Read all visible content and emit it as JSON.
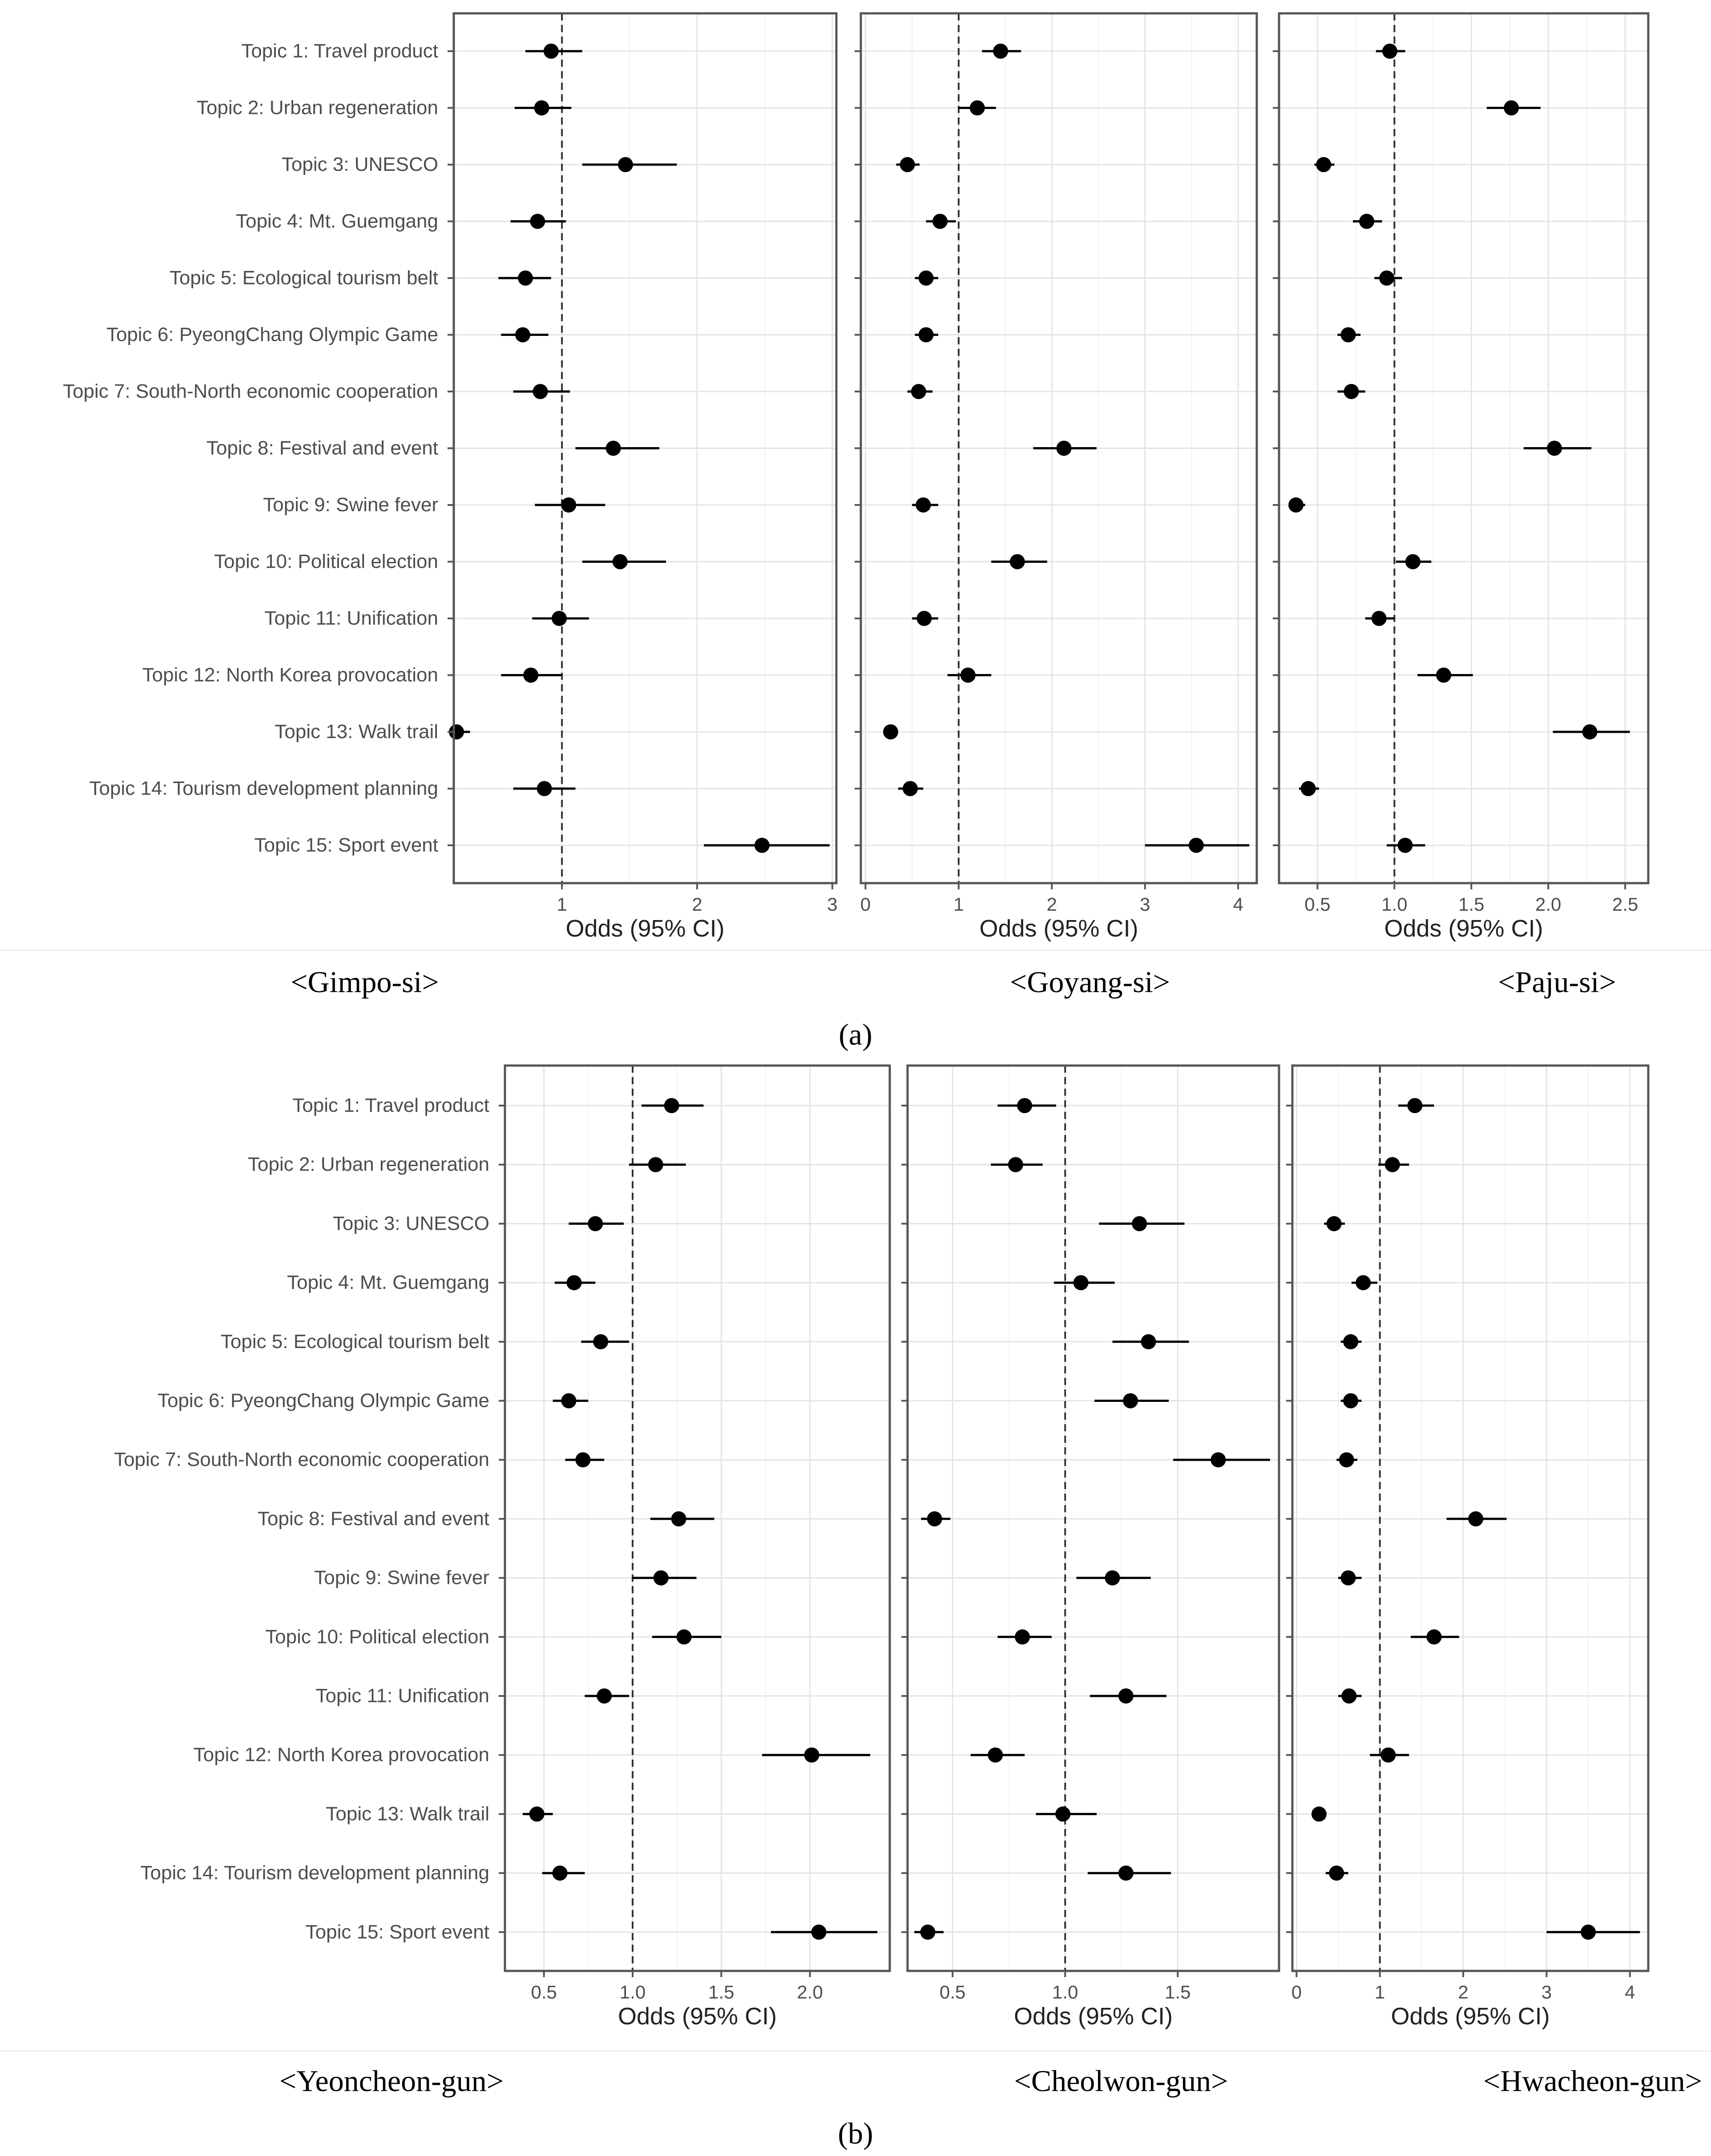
{
  "topics": [
    "Topic 1: Travel product",
    "Topic 2: Urban regeneration",
    "Topic 3: UNESCO",
    "Topic 4: Mt. Guemgang",
    "Topic 5: Ecological tourism belt",
    "Topic 6: PyeongChang Olympic Game",
    "Topic 7: South-North economic cooperation",
    "Topic 8: Festival and event",
    "Topic 9: Swine fever",
    "Topic 10: Political election",
    "Topic 11: Unification",
    "Topic 12: North Korea provocation",
    "Topic 13: Walk trail",
    "Topic 14: Tourism development planning",
    "Topic 15: Sport event"
  ],
  "panel_a_label": "(a)",
  "panel_b_label": "(b)",
  "chart_data": [
    {
      "type": "scatter",
      "subtype": "forest-plot",
      "panel": "a",
      "caption": "<Gimpo-si>",
      "xlabel": "Odds (95% CI)",
      "xlim": [
        0.2,
        3.03
      ],
      "xticks": [
        1,
        2,
        3
      ],
      "reference_line": 1,
      "odds": [
        0.92,
        0.85,
        1.47,
        0.82,
        0.73,
        0.71,
        0.84,
        1.38,
        1.05,
        1.43,
        0.98,
        0.77,
        0.22,
        0.87,
        2.48
      ],
      "lower": [
        0.73,
        0.65,
        1.15,
        0.62,
        0.53,
        0.55,
        0.64,
        1.1,
        0.8,
        1.15,
        0.78,
        0.55,
        0.17,
        0.64,
        2.05
      ],
      "upper": [
        1.15,
        1.07,
        1.85,
        1.03,
        0.92,
        0.9,
        1.06,
        1.72,
        1.32,
        1.77,
        1.2,
        1.0,
        0.32,
        1.1,
        2.98
      ]
    },
    {
      "type": "scatter",
      "subtype": "forest-plot",
      "panel": "a",
      "caption": "<Goyang-si>",
      "xlabel": "Odds (95% CI)",
      "xlim": [
        -0.05,
        4.2
      ],
      "xticks": [
        0,
        1,
        2,
        3,
        4
      ],
      "reference_line": 1,
      "odds": [
        1.45,
        1.2,
        0.45,
        0.8,
        0.65,
        0.65,
        0.57,
        2.13,
        0.62,
        1.63,
        0.63,
        1.1,
        0.27,
        0.48,
        3.55
      ],
      "lower": [
        1.25,
        1.0,
        0.33,
        0.65,
        0.53,
        0.53,
        0.45,
        1.8,
        0.5,
        1.35,
        0.5,
        0.88,
        0.2,
        0.35,
        3.0
      ],
      "upper": [
        1.67,
        1.4,
        0.58,
        0.97,
        0.78,
        0.78,
        0.72,
        2.48,
        0.78,
        1.95,
        0.78,
        1.35,
        0.33,
        0.62,
        4.12
      ]
    },
    {
      "type": "scatter",
      "subtype": "forest-plot",
      "panel": "a",
      "caption": "<Paju-si>",
      "xlabel": "Odds (95% CI)",
      "xlim": [
        0.25,
        2.65
      ],
      "xticks": [
        0.5,
        1.0,
        1.5,
        2.0,
        2.5
      ],
      "xtick_labels": [
        "0.5",
        "1.0",
        "1.5",
        "2.0",
        "2.5"
      ],
      "reference_line": 1,
      "odds": [
        0.97,
        1.76,
        0.54,
        0.82,
        0.95,
        0.7,
        0.72,
        2.04,
        0.36,
        1.12,
        0.9,
        1.32,
        2.27,
        0.44,
        1.07
      ],
      "lower": [
        0.88,
        1.6,
        0.48,
        0.73,
        0.87,
        0.63,
        0.63,
        1.84,
        0.32,
        1.01,
        0.81,
        1.15,
        2.03,
        0.38,
        0.95
      ],
      "upper": [
        1.07,
        1.95,
        0.61,
        0.92,
        1.05,
        0.78,
        0.81,
        2.28,
        0.42,
        1.24,
        1.0,
        1.51,
        2.53,
        0.51,
        1.2
      ]
    },
    {
      "type": "scatter",
      "subtype": "forest-plot",
      "panel": "b",
      "caption": "<Yeoncheon-gun>",
      "xlabel": "Odds (95% CI)",
      "xlim": [
        0.28,
        2.45
      ],
      "xticks": [
        0.5,
        1.0,
        1.5,
        2.0
      ],
      "xtick_labels": [
        "0.5",
        "1.0",
        "1.5",
        "2.0"
      ],
      "reference_line": 1,
      "odds": [
        1.22,
        1.13,
        0.79,
        0.67,
        0.82,
        0.64,
        0.72,
        1.26,
        1.16,
        1.29,
        0.84,
        2.01,
        0.46,
        0.59,
        2.05
      ],
      "lower": [
        1.05,
        0.98,
        0.64,
        0.56,
        0.71,
        0.55,
        0.62,
        1.1,
        1.0,
        1.11,
        0.73,
        1.73,
        0.38,
        0.49,
        1.78
      ],
      "upper": [
        1.4,
        1.3,
        0.95,
        0.79,
        0.98,
        0.75,
        0.84,
        1.46,
        1.36,
        1.5,
        0.98,
        2.34,
        0.55,
        0.73,
        2.38
      ]
    },
    {
      "type": "scatter",
      "subtype": "forest-plot",
      "panel": "b",
      "caption": "<Cheolwon-gun>",
      "xlabel": "Odds (95% CI)",
      "xlim": [
        0.3,
        1.95
      ],
      "xticks": [
        0.5,
        1.0,
        1.5
      ],
      "xtick_labels": [
        "0.5",
        "1.0",
        "1.5"
      ],
      "reference_line": 1,
      "odds": [
        0.82,
        0.78,
        1.33,
        1.07,
        1.37,
        1.29,
        1.68,
        0.42,
        1.21,
        0.81,
        1.27,
        0.69,
        0.99,
        1.27,
        0.39
      ],
      "lower": [
        0.7,
        0.67,
        1.15,
        0.95,
        1.21,
        1.13,
        1.48,
        0.36,
        1.05,
        0.7,
        1.11,
        0.58,
        0.87,
        1.1,
        0.33
      ],
      "upper": [
        0.96,
        0.9,
        1.53,
        1.22,
        1.55,
        1.46,
        1.91,
        0.49,
        1.38,
        0.94,
        1.45,
        0.82,
        1.14,
        1.47,
        0.46
      ]
    },
    {
      "type": "scatter",
      "subtype": "forest-plot",
      "panel": "b",
      "caption": "<Hwacheon-gun>",
      "xlabel": "Odds (95% CI)",
      "xlim": [
        -0.05,
        4.22
      ],
      "xticks": [
        0,
        1,
        2,
        3,
        4
      ],
      "reference_line": 1,
      "odds": [
        1.42,
        1.15,
        0.45,
        0.8,
        0.65,
        0.65,
        0.6,
        2.15,
        0.62,
        1.65,
        0.63,
        1.1,
        0.27,
        0.48,
        3.5
      ],
      "lower": [
        1.22,
        0.98,
        0.33,
        0.66,
        0.53,
        0.53,
        0.48,
        1.8,
        0.5,
        1.37,
        0.5,
        0.88,
        0.2,
        0.35,
        3.0
      ],
      "upper": [
        1.65,
        1.35,
        0.58,
        0.97,
        0.78,
        0.78,
        0.73,
        2.52,
        0.78,
        1.95,
        0.78,
        1.35,
        0.33,
        0.62,
        4.12
      ]
    }
  ]
}
